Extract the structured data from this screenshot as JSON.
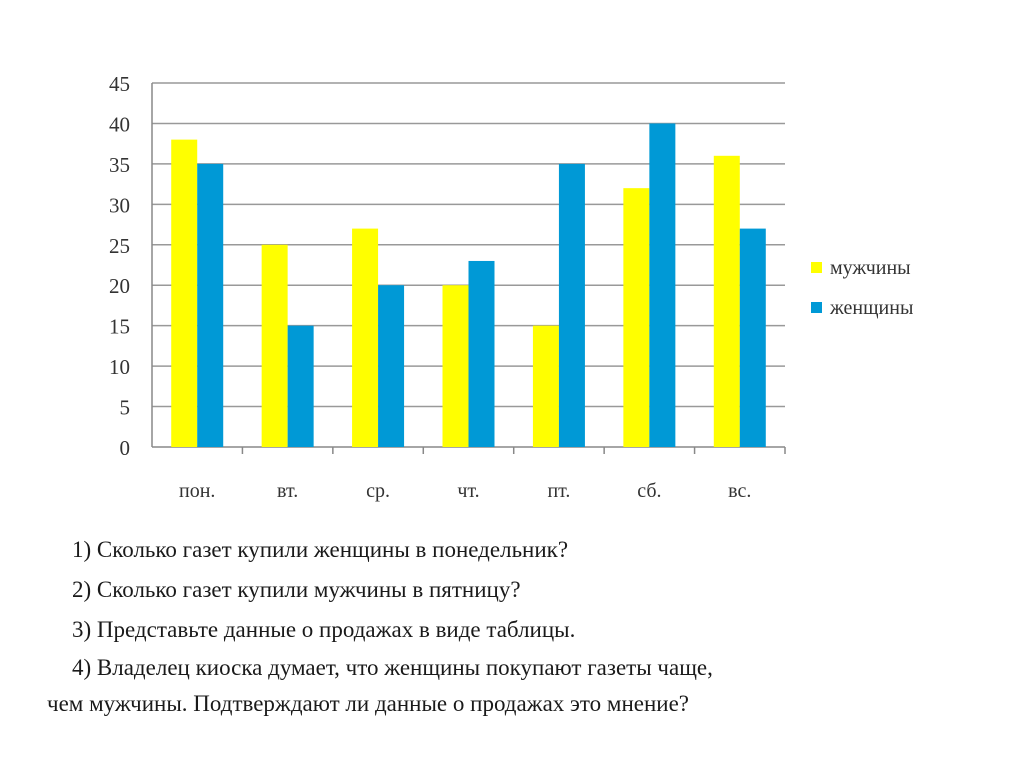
{
  "chart_data": {
    "type": "bar",
    "title": "",
    "xlabel": "",
    "ylabel": "",
    "categories": [
      "пон.",
      "вт.",
      "ср.",
      "чт.",
      "пт.",
      "сб.",
      "вс."
    ],
    "series": [
      {
        "name": "мужчины",
        "color": "#FFFF00",
        "values": [
          38,
          25,
          27,
          20,
          15,
          32,
          36
        ]
      },
      {
        "name": "женщины",
        "color": "#0099D6",
        "values": [
          35,
          15,
          20,
          23,
          35,
          40,
          27
        ]
      }
    ],
    "ylim": [
      0,
      45
    ],
    "yticks": [
      0,
      5,
      10,
      15,
      20,
      25,
      30,
      35,
      40,
      45
    ],
    "grid": true,
    "legend_position": "right"
  },
  "questions": [
    "1) Сколько газет купили женщины в понедельник?",
    "2) Сколько газет купили мужчины в пятницу?",
    "3) Представьте данные о продажах в виде таблицы.",
    "4) Владелец киоска думает, что женщины покупают газеты чаще,",
    "чем мужчины. Подтверждают ли данные о продажах это мнение?"
  ]
}
